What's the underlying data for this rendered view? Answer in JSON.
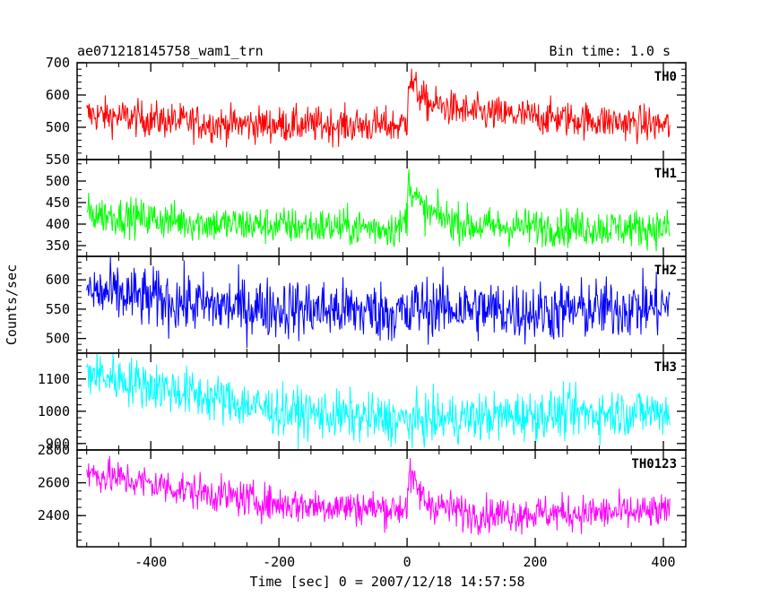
{
  "chart_data": {
    "type": "line",
    "title_left": "ae071218145758_wam1_trn",
    "title_right": "Bin time: 1.0 s",
    "xlabel": "Time [sec] 0 = 2007/12/18 14:57:58",
    "ylabel": "Counts/sec",
    "xlim": [
      -515,
      435
    ],
    "xticks": [
      -400,
      -200,
      0,
      200,
      400
    ],
    "x_range": [
      -500,
      410
    ],
    "panels": [
      {
        "name": "TH0",
        "color": "#ff0000",
        "ylim": [
          400,
          700
        ],
        "yticks": [
          500,
          600,
          700
        ],
        "profile": [
          [
            -500,
            540
          ],
          [
            -300,
            510
          ],
          [
            -10,
            505
          ],
          [
            0,
            520
          ],
          [
            2,
            650
          ],
          [
            30,
            575
          ],
          [
            100,
            545
          ],
          [
            300,
            520
          ],
          [
            410,
            505
          ]
        ],
        "noise": 28
      },
      {
        "name": "TH1",
        "color": "#00ff00",
        "ylim": [
          325,
          550
        ],
        "yticks": [
          350,
          400,
          450,
          500,
          550
        ],
        "profile": [
          [
            -500,
            425
          ],
          [
            -300,
            400
          ],
          [
            -10,
            390
          ],
          [
            0,
            420
          ],
          [
            2,
            500
          ],
          [
            25,
            430
          ],
          [
            100,
            395
          ],
          [
            410,
            390
          ]
        ],
        "noise": 22
      },
      {
        "name": "TH2",
        "color": "#0000ff",
        "ylim": [
          475,
          640
        ],
        "yticks": [
          500,
          550,
          600
        ],
        "profile": [
          [
            -500,
            580
          ],
          [
            -300,
            555
          ],
          [
            -5,
            545
          ],
          [
            0,
            525
          ],
          [
            10,
            555
          ],
          [
            200,
            545
          ],
          [
            410,
            555
          ]
        ],
        "noise": 26
      },
      {
        "name": "TH3",
        "color": "#00ffff",
        "ylim": [
          880,
          1180
        ],
        "yticks": [
          900,
          1000,
          1100
        ],
        "profile": [
          [
            -500,
            1120
          ],
          [
            -350,
            1060
          ],
          [
            -200,
            1000
          ],
          [
            0,
            970
          ],
          [
            200,
            990
          ],
          [
            410,
            1000
          ]
        ],
        "noise": 38
      },
      {
        "name": "TH0123",
        "color": "#ff00ff",
        "ylim": [
          2210,
          2800
        ],
        "yticks": [
          2400,
          2600,
          2800
        ],
        "profile": [
          [
            -500,
            2660
          ],
          [
            -350,
            2560
          ],
          [
            -200,
            2470
          ],
          [
            -10,
            2440
          ],
          [
            0,
            2470
          ],
          [
            3,
            2640
          ],
          [
            30,
            2480
          ],
          [
            100,
            2410
          ],
          [
            410,
            2420
          ]
        ],
        "noise": 55
      }
    ]
  }
}
